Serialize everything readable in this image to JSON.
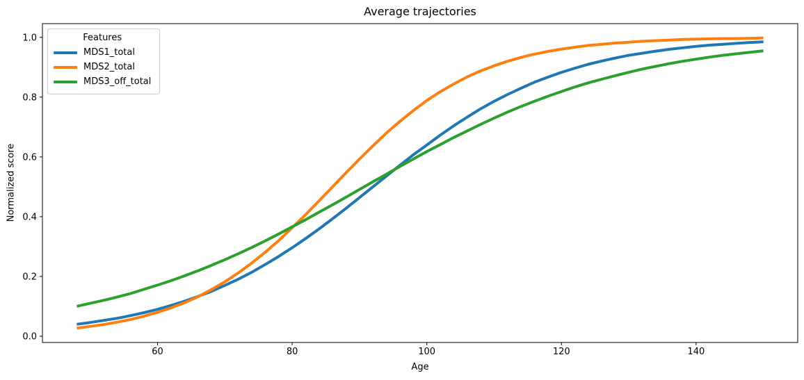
{
  "chart_data": {
    "type": "line",
    "title": "Average trajectories",
    "xlabel": "Age",
    "ylabel": "Normalized score",
    "xlim": [
      42.9,
      155.1
    ],
    "ylim": [
      -0.021,
      1.046
    ],
    "xticks": [
      60,
      80,
      100,
      120,
      140
    ],
    "xtick_labels": [
      "60",
      "80",
      "100",
      "120",
      "140"
    ],
    "yticks": [
      0.0,
      0.2,
      0.4,
      0.6,
      0.8,
      1.0
    ],
    "ytick_labels": [
      "0.0",
      "0.2",
      "0.4",
      "0.6",
      "0.8",
      "1.0"
    ],
    "grid": false,
    "line_width": 4,
    "spine_color": "#000000",
    "legend": {
      "title": "Features",
      "position": "upper left"
    },
    "x": [
      48,
      50,
      52,
      54,
      56,
      58,
      60,
      62,
      64,
      66,
      68,
      70,
      72,
      74,
      76,
      78,
      80,
      82,
      84,
      86,
      88,
      90,
      92,
      94,
      96,
      98,
      100,
      102,
      104,
      106,
      108,
      110,
      112,
      114,
      116,
      118,
      120,
      122,
      124,
      126,
      128,
      130,
      132,
      134,
      136,
      138,
      140,
      142,
      144,
      146,
      148,
      150
    ],
    "series": [
      {
        "name": "MDS1_total",
        "color": "#1f77b4",
        "values": [
          0.04,
          0.046,
          0.053,
          0.06,
          0.069,
          0.079,
          0.09,
          0.103,
          0.117,
          0.133,
          0.15,
          0.17,
          0.191,
          0.214,
          0.24,
          0.267,
          0.296,
          0.327,
          0.359,
          0.393,
          0.428,
          0.464,
          0.5,
          0.536,
          0.572,
          0.607,
          0.64,
          0.673,
          0.704,
          0.733,
          0.761,
          0.786,
          0.809,
          0.83,
          0.85,
          0.867,
          0.883,
          0.897,
          0.91,
          0.921,
          0.931,
          0.94,
          0.947,
          0.954,
          0.96,
          0.965,
          0.97,
          0.974,
          0.977,
          0.98,
          0.983,
          0.985
        ]
      },
      {
        "name": "MDS2_total",
        "color": "#ff7f0e",
        "values": [
          0.027,
          0.033,
          0.039,
          0.047,
          0.056,
          0.067,
          0.08,
          0.095,
          0.112,
          0.132,
          0.156,
          0.182,
          0.212,
          0.245,
          0.281,
          0.32,
          0.363,
          0.407,
          0.453,
          0.5,
          0.547,
          0.593,
          0.637,
          0.68,
          0.719,
          0.755,
          0.789,
          0.818,
          0.844,
          0.868,
          0.888,
          0.905,
          0.92,
          0.933,
          0.944,
          0.953,
          0.961,
          0.967,
          0.973,
          0.977,
          0.981,
          0.984,
          0.987,
          0.989,
          0.991,
          0.993,
          0.994,
          0.995,
          0.996,
          0.996,
          0.997,
          0.998
        ]
      },
      {
        "name": "MDS3_off_total",
        "color": "#2ca02c",
        "values": [
          0.1,
          0.11,
          0.12,
          0.131,
          0.143,
          0.157,
          0.171,
          0.186,
          0.202,
          0.219,
          0.237,
          0.256,
          0.276,
          0.297,
          0.319,
          0.342,
          0.366,
          0.39,
          0.415,
          0.44,
          0.465,
          0.491,
          0.517,
          0.542,
          0.568,
          0.593,
          0.618,
          0.641,
          0.665,
          0.687,
          0.709,
          0.73,
          0.75,
          0.769,
          0.786,
          0.803,
          0.819,
          0.834,
          0.848,
          0.86,
          0.872,
          0.883,
          0.894,
          0.903,
          0.912,
          0.92,
          0.927,
          0.934,
          0.94,
          0.945,
          0.95,
          0.955
        ]
      }
    ]
  }
}
